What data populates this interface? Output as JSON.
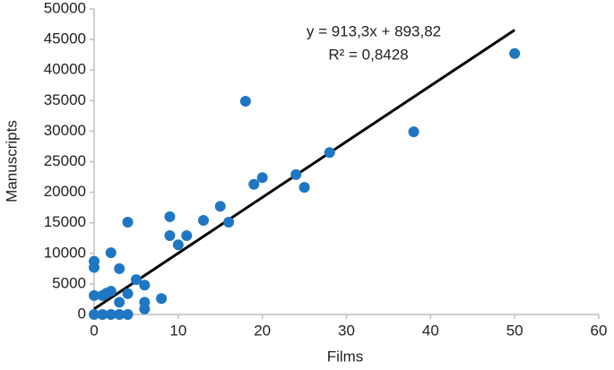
{
  "chart_data": {
    "type": "scatter",
    "x_label": "Films",
    "y_label": "Manuscripts",
    "x": [
      0,
      0,
      0,
      0,
      1,
      1,
      1.5,
      2,
      2,
      2,
      3,
      3,
      3,
      4,
      4,
      4,
      5,
      6,
      6,
      6,
      8,
      9,
      9,
      10,
      11,
      13,
      15,
      16,
      18,
      19,
      20,
      24,
      25,
      28,
      38,
      50
    ],
    "series": [
      {
        "color": "#1f77c4",
        "values": [
          8700,
          7700,
          3100,
          0,
          3100,
          0,
          3500,
          10100,
          3800,
          0,
          7500,
          2000,
          0,
          15100,
          3400,
          0,
          5700,
          4800,
          2000,
          900,
          2600,
          16000,
          12900,
          11400,
          12900,
          15400,
          17700,
          15100,
          34900,
          21300,
          22400,
          22900,
          20800,
          26500,
          29900,
          42700
        ]
      }
    ],
    "trendline": {
      "slope": 913.3,
      "intercept": 893.82,
      "equation": "y = 913,3x + 893,82",
      "r2": "R² = 0,8428",
      "color": "#000000"
    },
    "xlim": [
      0,
      60
    ],
    "xticks": [
      0,
      10,
      20,
      30,
      40,
      50,
      60
    ],
    "ylim": [
      0,
      50000
    ],
    "yticks": [
      0,
      5000,
      10000,
      15000,
      20000,
      25000,
      30000,
      35000,
      40000,
      45000,
      50000
    ],
    "grid": false
  }
}
